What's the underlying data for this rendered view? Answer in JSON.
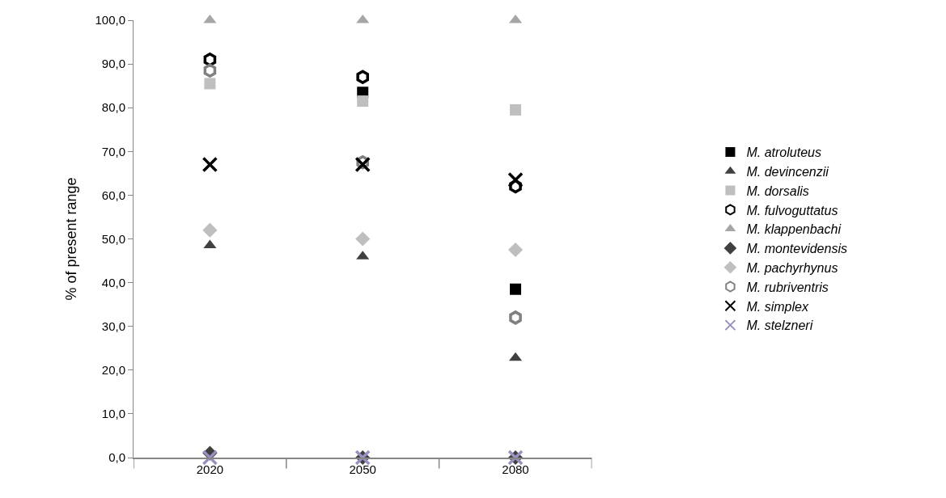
{
  "chart_data": {
    "type": "scatter",
    "ylabel": "% of present range",
    "categories": [
      "2020",
      "2050",
      "2080"
    ],
    "ylim": [
      0,
      100
    ],
    "yticks": [
      {
        "value": 0,
        "label": "0,0"
      },
      {
        "value": 10,
        "label": "10,0"
      },
      {
        "value": 20,
        "label": "20,0"
      },
      {
        "value": 30,
        "label": "30,0"
      },
      {
        "value": 40,
        "label": "40,0"
      },
      {
        "value": 50,
        "label": "50,0"
      },
      {
        "value": 60,
        "label": "60,0"
      },
      {
        "value": 70,
        "label": "70,0"
      },
      {
        "value": 80,
        "label": "80,0"
      },
      {
        "value": 90,
        "label": "90,0"
      },
      {
        "value": 100,
        "label": "100,0"
      }
    ],
    "grid": false,
    "legend": "right",
    "series": [
      {
        "name": "M. atroluteus",
        "color": "#000000",
        "marker": "square",
        "values": [
          null,
          83.5,
          38.5
        ]
      },
      {
        "name": "M. devincenzii",
        "color": "#404040",
        "marker": "triangle",
        "values": [
          48.5,
          46,
          22.8
        ]
      },
      {
        "name": "M. dorsalis",
        "color": "#bfbfbf",
        "marker": "square",
        "values": [
          85.5,
          81.5,
          79.5
        ]
      },
      {
        "name": "M. fulvoguttatus",
        "color": "#000000",
        "marker": "circle",
        "values": [
          91,
          87,
          62
        ]
      },
      {
        "name": "M. klappenbachi",
        "color": "#a6a6a6",
        "marker": "triangle",
        "values": [
          100,
          100,
          100
        ]
      },
      {
        "name": "M. montevidensis",
        "color": "#404040",
        "marker": "diamond",
        "values": [
          1,
          0,
          0
        ]
      },
      {
        "name": "M. pachyrhynus",
        "color": "#bfbfbf",
        "marker": "diamond",
        "values": [
          52,
          50,
          47.5
        ]
      },
      {
        "name": "M. rubriventris",
        "color": "#808080",
        "marker": "circle",
        "values": [
          88.5,
          67.5,
          32
        ]
      },
      {
        "name": "M. simplex",
        "color": "#000000",
        "marker": "cross",
        "values": [
          67,
          67,
          63.5
        ]
      },
      {
        "name": "M. stelzneri",
        "color": "#9b8fc0",
        "marker": "cross",
        "values": [
          0,
          0,
          0
        ]
      }
    ]
  }
}
